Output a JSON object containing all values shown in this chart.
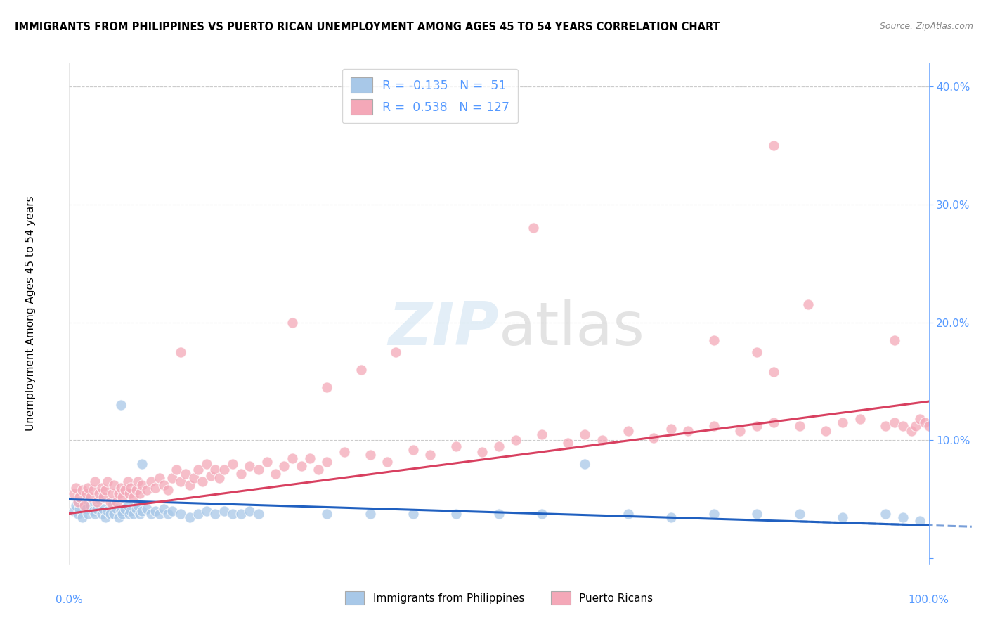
{
  "title": "IMMIGRANTS FROM PHILIPPINES VS PUERTO RICAN UNEMPLOYMENT AMONG AGES 45 TO 54 YEARS CORRELATION CHART",
  "source": "Source: ZipAtlas.com",
  "ylabel": "Unemployment Among Ages 45 to 54 years",
  "yticks": [
    0.0,
    0.1,
    0.2,
    0.3,
    0.4
  ],
  "ytick_labels": [
    "",
    "10.0%",
    "20.0%",
    "30.0%",
    "40.0%"
  ],
  "xlim": [
    0.0,
    1.0
  ],
  "ylim": [
    -0.005,
    0.42
  ],
  "watermark": "ZIPatlas",
  "legend_title_blue": "Immigrants from Philippines",
  "legend_title_pink": "Puerto Ricans",
  "blue_color": "#a8c8e8",
  "pink_color": "#f4a8b8",
  "blue_line_color": "#2060c0",
  "pink_line_color": "#d84060",
  "grid_color": "#cccccc",
  "axis_color": "#5599ff",
  "blue_scatter": {
    "x": [
      0.005,
      0.008,
      0.01,
      0.012,
      0.015,
      0.018,
      0.02,
      0.022,
      0.025,
      0.028,
      0.03,
      0.032,
      0.035,
      0.038,
      0.04,
      0.042,
      0.045,
      0.048,
      0.05,
      0.052,
      0.055,
      0.058,
      0.06,
      0.062,
      0.065,
      0.068,
      0.07,
      0.072,
      0.075,
      0.078,
      0.08,
      0.082,
      0.085,
      0.09,
      0.095,
      0.1,
      0.105,
      0.11,
      0.115,
      0.12,
      0.13,
      0.14,
      0.15,
      0.16,
      0.17,
      0.18,
      0.19,
      0.2,
      0.21,
      0.22,
      0.55,
      0.65,
      0.7,
      0.75,
      0.8,
      0.85,
      0.9,
      0.95,
      0.97,
      0.99,
      0.3,
      0.35,
      0.4,
      0.45,
      0.5
    ],
    "y": [
      0.04,
      0.045,
      0.038,
      0.042,
      0.035,
      0.048,
      0.042,
      0.038,
      0.045,
      0.04,
      0.038,
      0.042,
      0.05,
      0.038,
      0.042,
      0.035,
      0.04,
      0.038,
      0.045,
      0.038,
      0.042,
      0.035,
      0.04,
      0.038,
      0.042,
      0.045,
      0.038,
      0.04,
      0.038,
      0.042,
      0.045,
      0.038,
      0.04,
      0.042,
      0.038,
      0.04,
      0.038,
      0.042,
      0.038,
      0.04,
      0.038,
      0.035,
      0.038,
      0.04,
      0.038,
      0.04,
      0.038,
      0.038,
      0.04,
      0.038,
      0.038,
      0.038,
      0.035,
      0.038,
      0.038,
      0.038,
      0.035,
      0.038,
      0.035,
      0.032,
      0.038,
      0.038,
      0.038,
      0.038,
      0.038
    ]
  },
  "blue_outliers": {
    "x": [
      0.06,
      0.085,
      0.6
    ],
    "y": [
      0.13,
      0.08,
      0.08
    ]
  },
  "pink_scatter": {
    "x": [
      0.005,
      0.008,
      0.01,
      0.012,
      0.015,
      0.018,
      0.02,
      0.022,
      0.025,
      0.028,
      0.03,
      0.032,
      0.035,
      0.038,
      0.04,
      0.042,
      0.045,
      0.048,
      0.05,
      0.052,
      0.055,
      0.058,
      0.06,
      0.062,
      0.065,
      0.068,
      0.07,
      0.072,
      0.075,
      0.078,
      0.08,
      0.082,
      0.085,
      0.09,
      0.095,
      0.1,
      0.105,
      0.11,
      0.115,
      0.12,
      0.125,
      0.13,
      0.135,
      0.14,
      0.145,
      0.15,
      0.155,
      0.16,
      0.165,
      0.17,
      0.175,
      0.18,
      0.19,
      0.2,
      0.21,
      0.22,
      0.23,
      0.24,
      0.25,
      0.26,
      0.27,
      0.28,
      0.29,
      0.3,
      0.32,
      0.35,
      0.37,
      0.4,
      0.42,
      0.45,
      0.48,
      0.5,
      0.52,
      0.55,
      0.58,
      0.6,
      0.62,
      0.65,
      0.68,
      0.7,
      0.72,
      0.75,
      0.78,
      0.8,
      0.82,
      0.85,
      0.88,
      0.9,
      0.92,
      0.95,
      0.96,
      0.97,
      0.98,
      0.985,
      0.99,
      0.995,
      1.0
    ],
    "y": [
      0.055,
      0.06,
      0.048,
      0.052,
      0.058,
      0.045,
      0.055,
      0.06,
      0.052,
      0.058,
      0.065,
      0.048,
      0.055,
      0.06,
      0.052,
      0.058,
      0.065,
      0.048,
      0.055,
      0.062,
      0.048,
      0.055,
      0.06,
      0.052,
      0.058,
      0.065,
      0.055,
      0.06,
      0.052,
      0.058,
      0.065,
      0.055,
      0.062,
      0.058,
      0.065,
      0.06,
      0.068,
      0.062,
      0.058,
      0.068,
      0.075,
      0.065,
      0.072,
      0.062,
      0.068,
      0.075,
      0.065,
      0.08,
      0.07,
      0.075,
      0.068,
      0.075,
      0.08,
      0.072,
      0.078,
      0.075,
      0.082,
      0.072,
      0.078,
      0.085,
      0.078,
      0.085,
      0.075,
      0.082,
      0.09,
      0.088,
      0.082,
      0.092,
      0.088,
      0.095,
      0.09,
      0.095,
      0.1,
      0.105,
      0.098,
      0.105,
      0.1,
      0.108,
      0.102,
      0.11,
      0.108,
      0.112,
      0.108,
      0.112,
      0.115,
      0.112,
      0.108,
      0.115,
      0.118,
      0.112,
      0.115,
      0.112,
      0.108,
      0.112,
      0.118,
      0.115,
      0.112
    ]
  },
  "pink_outliers": {
    "x": [
      0.13,
      0.26,
      0.3,
      0.34,
      0.38,
      0.86,
      0.96,
      0.8,
      0.75,
      0.82
    ],
    "y": [
      0.175,
      0.2,
      0.145,
      0.16,
      0.175,
      0.215,
      0.185,
      0.175,
      0.185,
      0.158
    ]
  },
  "pink_high_outliers": {
    "x": [
      0.54,
      0.82
    ],
    "y": [
      0.28,
      0.35
    ]
  }
}
